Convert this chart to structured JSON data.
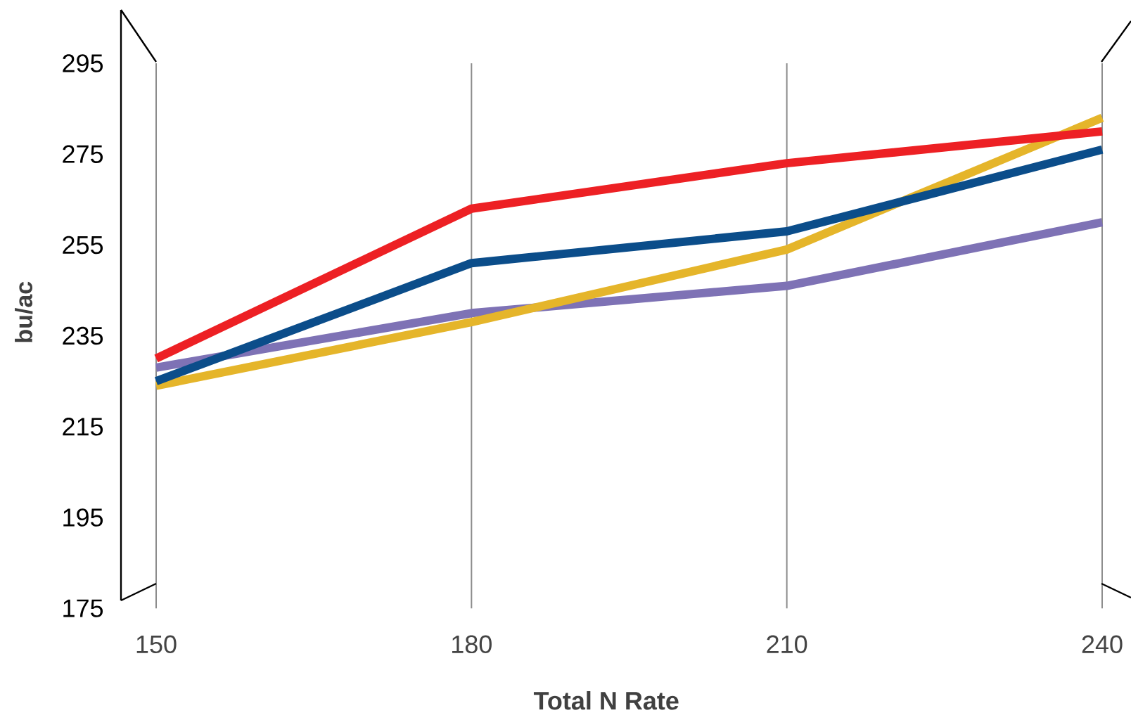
{
  "chart_data": {
    "type": "line",
    "xlabel": "Total N Rate",
    "ylabel": "bu/ac",
    "x": [
      150,
      180,
      210,
      240
    ],
    "series": [
      {
        "color": "#7e72b5",
        "values": [
          228,
          240,
          246,
          260
        ]
      },
      {
        "color": "#e5b52a",
        "values": [
          224,
          238,
          254,
          283
        ]
      },
      {
        "color": "#0b4d8a",
        "values": [
          225,
          251,
          258,
          276
        ]
      },
      {
        "color": "#ed2024",
        "values": [
          230,
          263,
          273,
          280
        ]
      }
    ],
    "xlim": [
      150,
      240
    ],
    "ylim": [
      175,
      295
    ],
    "xticks": [
      150,
      180,
      210,
      240
    ],
    "yticks": [
      175,
      195,
      215,
      235,
      255,
      275,
      295
    ],
    "grid": "x",
    "line_style": "solid"
  }
}
